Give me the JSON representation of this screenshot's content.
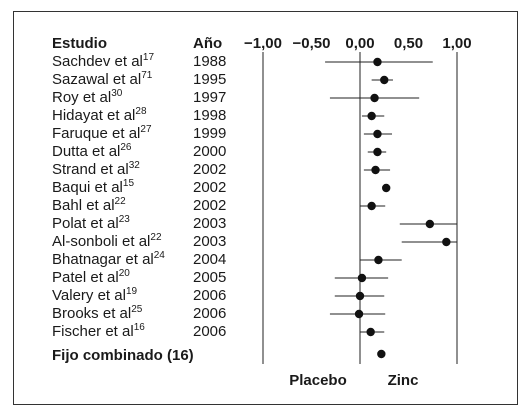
{
  "chart_data": {
    "type": "forest",
    "columns": [
      "Estudio",
      "Año"
    ],
    "xlim": [
      -1,
      1
    ],
    "xticks": [
      {
        "value": -1,
        "label": "−1,00"
      },
      {
        "value": -0.5,
        "label": "−0,50"
      },
      {
        "value": 0,
        "label": "0,00"
      },
      {
        "value": 0.5,
        "label": "0,50"
      },
      {
        "value": 1,
        "label": "1,00"
      }
    ],
    "reference_lines": [
      -1,
      0,
      1
    ],
    "studies": [
      {
        "name": "Sachdev et al",
        "ref": "17",
        "year": 1988,
        "estimate": 0.18,
        "lower": -0.36,
        "upper": 0.75
      },
      {
        "name": "Sazawal et al",
        "ref": "71",
        "year": 1995,
        "estimate": 0.25,
        "lower": 0.12,
        "upper": 0.34
      },
      {
        "name": "Roy et al",
        "ref": "30",
        "year": 1997,
        "estimate": 0.15,
        "lower": -0.31,
        "upper": 0.61
      },
      {
        "name": "Hidayat et al",
        "ref": "28",
        "year": 1998,
        "estimate": 0.12,
        "lower": 0.02,
        "upper": 0.25
      },
      {
        "name": "Faruque et al",
        "ref": "27",
        "year": 1999,
        "estimate": 0.18,
        "lower": 0.04,
        "upper": 0.33
      },
      {
        "name": "Dutta et al",
        "ref": "26",
        "year": 2000,
        "estimate": 0.18,
        "lower": 0.08,
        "upper": 0.27
      },
      {
        "name": "Strand et al",
        "ref": "32",
        "year": 2002,
        "estimate": 0.16,
        "lower": 0.04,
        "upper": 0.31
      },
      {
        "name": "Baqui et al",
        "ref": "15",
        "year": 2002,
        "estimate": 0.27,
        "lower": 0.24,
        "upper": 0.31
      },
      {
        "name": "Bahl et al",
        "ref": "22",
        "year": 2002,
        "estimate": 0.12,
        "lower": 0.0,
        "upper": 0.26
      },
      {
        "name": "Polat et al",
        "ref": "23",
        "year": 2003,
        "estimate": 0.72,
        "lower": 0.41,
        "upper": 1.0
      },
      {
        "name": "Al-sonboli et al",
        "ref": "22",
        "year": 2003,
        "estimate": 0.89,
        "lower": 0.43,
        "upper": 1.0
      },
      {
        "name": "Bhatnagar et al",
        "ref": "24",
        "year": 2004,
        "estimate": 0.19,
        "lower": 0.0,
        "upper": 0.43
      },
      {
        "name": "Patel et al",
        "ref": "20",
        "year": 2005,
        "estimate": 0.02,
        "lower": -0.26,
        "upper": 0.29
      },
      {
        "name": "Valery et al",
        "ref": "19",
        "year": 2006,
        "estimate": 0.0,
        "lower": -0.26,
        "upper": 0.25
      },
      {
        "name": "Brooks et al",
        "ref": "25",
        "year": 2006,
        "estimate": -0.01,
        "lower": -0.31,
        "upper": 0.26
      },
      {
        "name": "Fischer et al",
        "ref": "16",
        "year": 2006,
        "estimate": 0.11,
        "lower": 0.0,
        "upper": 0.25
      }
    ],
    "combined": {
      "label": "Fijo combinado (16)",
      "estimate": 0.22
    },
    "x_labels": [
      "Placebo",
      "Zinc"
    ]
  }
}
